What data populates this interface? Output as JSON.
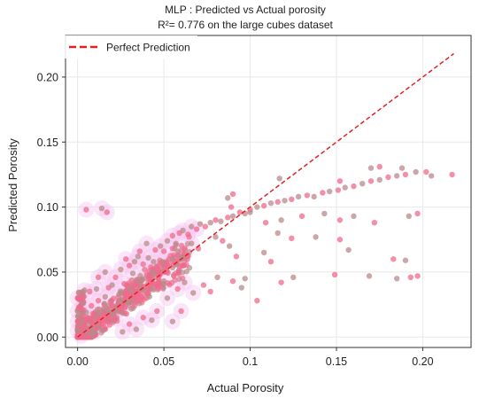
{
  "chart_data": {
    "type": "scatter",
    "title": "MLP : Predicted vs Actual porosity",
    "subtitle": "R²= 0.776 on the large cubes dataset",
    "xlabel": "Actual Porosity",
    "ylabel": "Predicted Porosity",
    "xlim": [
      -0.007,
      0.228
    ],
    "ylim": [
      -0.008,
      0.232
    ],
    "x_ticks": [
      0.0,
      0.05,
      0.1,
      0.15,
      0.2
    ],
    "x_tick_labels": [
      "0.00",
      "0.05",
      "0.1",
      "0.15",
      "0.20"
    ],
    "y_ticks": [
      0.0,
      0.05,
      0.1,
      0.15,
      0.2
    ],
    "y_tick_labels": [
      "0.00",
      "0.05",
      "0.10",
      "0.15",
      "0.20"
    ],
    "grid": true,
    "legend": {
      "position": "top-left",
      "entries": [
        "Perfect Prediction"
      ]
    },
    "colors": {
      "points_pink": "#f06a8c",
      "points_taupe": "#b98a8a",
      "halo": "#f7c6f0",
      "reference_line": "#e32020",
      "grid": "#e8e8e8"
    },
    "series": [
      {
        "name": "Perfect Prediction",
        "kind": "reference-line",
        "x": [
          0.0,
          0.218
        ],
        "y": [
          0.0,
          0.218
        ]
      },
      {
        "kind": "points",
        "points": [
          [
            0.005,
            0.098
          ],
          [
            0.014,
            0.099
          ],
          [
            0.017,
            0.096
          ],
          [
            0.004,
            0.036
          ],
          [
            0.007,
            0.035
          ],
          [
            0.011,
            0.037
          ],
          [
            0.018,
            0.038
          ],
          [
            0.02,
            0.04
          ],
          [
            0.012,
            0.046
          ],
          [
            0.016,
            0.05
          ],
          [
            0.022,
            0.046
          ],
          [
            0.025,
            0.052
          ],
          [
            0.03,
            0.055
          ],
          [
            0.033,
            0.058
          ],
          [
            0.028,
            0.06
          ],
          [
            0.035,
            0.062
          ],
          [
            0.038,
            0.056
          ],
          [
            0.041,
            0.061
          ],
          [
            0.045,
            0.067
          ],
          [
            0.048,
            0.07
          ],
          [
            0.05,
            0.066
          ],
          [
            0.052,
            0.074
          ],
          [
            0.055,
            0.078
          ],
          [
            0.057,
            0.072
          ],
          [
            0.059,
            0.08
          ],
          [
            0.061,
            0.082
          ],
          [
            0.064,
            0.079
          ],
          [
            0.066,
            0.085
          ],
          [
            0.069,
            0.083
          ],
          [
            0.071,
            0.087
          ],
          [
            0.074,
            0.085
          ],
          [
            0.077,
            0.088
          ],
          [
            0.08,
            0.09
          ],
          [
            0.083,
            0.089
          ],
          [
            0.087,
            0.092
          ],
          [
            0.09,
            0.093
          ],
          [
            0.094,
            0.096
          ],
          [
            0.097,
            0.095
          ],
          [
            0.1,
            0.098
          ],
          [
            0.104,
            0.1
          ],
          [
            0.108,
            0.101
          ],
          [
            0.112,
            0.103
          ],
          [
            0.116,
            0.104
          ],
          [
            0.12,
            0.105
          ],
          [
            0.124,
            0.106
          ],
          [
            0.128,
            0.108
          ],
          [
            0.133,
            0.109
          ],
          [
            0.137,
            0.108
          ],
          [
            0.142,
            0.111
          ],
          [
            0.146,
            0.112
          ],
          [
            0.151,
            0.113
          ],
          [
            0.155,
            0.115
          ],
          [
            0.16,
            0.116
          ],
          [
            0.165,
            0.118
          ],
          [
            0.17,
            0.12
          ],
          [
            0.175,
            0.121
          ],
          [
            0.18,
            0.123
          ],
          [
            0.185,
            0.124
          ],
          [
            0.19,
            0.125
          ],
          [
            0.196,
            0.127
          ],
          [
            0.202,
            0.127
          ],
          [
            0.205,
            0.124
          ],
          [
            0.217,
            0.125
          ],
          [
            0.188,
            0.13
          ],
          [
            0.175,
            0.131
          ],
          [
            0.17,
            0.13
          ],
          [
            0.152,
            0.12
          ],
          [
            0.117,
            0.122
          ],
          [
            0.09,
            0.11
          ],
          [
            0.087,
            0.107
          ],
          [
            0.089,
            0.1
          ],
          [
            0.1,
            0.096
          ],
          [
            0.109,
            0.088
          ],
          [
            0.118,
            0.09
          ],
          [
            0.13,
            0.093
          ],
          [
            0.143,
            0.095
          ],
          [
            0.152,
            0.09
          ],
          [
            0.16,
            0.093
          ],
          [
            0.172,
            0.088
          ],
          [
            0.192,
            0.093
          ],
          [
            0.197,
            0.095
          ],
          [
            0.116,
            0.08
          ],
          [
            0.124,
            0.076
          ],
          [
            0.138,
            0.077
          ],
          [
            0.152,
            0.075
          ],
          [
            0.157,
            0.067
          ],
          [
            0.183,
            0.06
          ],
          [
            0.19,
            0.059
          ],
          [
            0.193,
            0.046
          ],
          [
            0.185,
            0.045
          ],
          [
            0.197,
            0.047
          ],
          [
            0.169,
            0.047
          ],
          [
            0.149,
            0.048
          ],
          [
            0.125,
            0.046
          ],
          [
            0.118,
            0.042
          ],
          [
            0.097,
            0.045
          ],
          [
            0.09,
            0.043
          ],
          [
            0.081,
            0.046
          ],
          [
            0.073,
            0.04
          ],
          [
            0.062,
            0.042
          ],
          [
            0.058,
            0.037
          ],
          [
            0.067,
            0.034
          ],
          [
            0.077,
            0.035
          ],
          [
            0.095,
            0.038
          ],
          [
            0.104,
            0.028
          ],
          [
            0.055,
            0.012
          ],
          [
            0.06,
            0.02
          ],
          [
            0.052,
            0.03
          ],
          [
            0.046,
            0.02
          ],
          [
            0.043,
            0.013
          ],
          [
            0.038,
            0.015
          ],
          [
            0.034,
            0.006
          ],
          [
            0.03,
            0.01
          ],
          [
            0.026,
            0.004
          ],
          [
            0.022,
            0.014
          ],
          [
            0.018,
            0.02
          ],
          [
            0.014,
            0.01
          ],
          [
            0.01,
            0.004
          ],
          [
            0.006,
            0.015
          ],
          [
            0.003,
            0.026
          ],
          [
            0.0,
            0.03
          ],
          [
            0.0,
            0.02
          ],
          [
            0.0,
            0.012
          ],
          [
            0.0,
            0.005
          ],
          [
            0.002,
            0.001
          ],
          [
            0.04,
            0.072
          ],
          [
            0.036,
            0.066
          ],
          [
            0.032,
            0.049
          ],
          [
            0.027,
            0.041
          ],
          [
            0.024,
            0.033
          ],
          [
            0.047,
            0.052
          ],
          [
            0.044,
            0.058
          ],
          [
            0.062,
            0.064
          ],
          [
            0.066,
            0.072
          ],
          [
            0.07,
            0.068
          ],
          [
            0.08,
            0.077
          ],
          [
            0.084,
            0.074
          ],
          [
            0.088,
            0.07
          ],
          [
            0.092,
            0.062
          ],
          [
            0.108,
            0.065
          ],
          [
            0.112,
            0.058
          ],
          [
            0.058,
            0.066
          ],
          [
            0.053,
            0.06
          ],
          [
            0.05,
            0.043
          ],
          [
            0.012,
            0.028
          ],
          [
            0.016,
            0.031
          ],
          [
            0.008,
            0.024
          ],
          [
            0.005,
            0.019
          ],
          [
            0.02,
            0.024
          ],
          [
            0.024,
            0.027
          ],
          [
            0.028,
            0.032
          ],
          [
            0.031,
            0.036
          ],
          [
            0.034,
            0.04
          ],
          [
            0.037,
            0.044
          ],
          [
            0.04,
            0.048
          ],
          [
            0.043,
            0.05
          ],
          [
            0.046,
            0.054
          ],
          [
            0.049,
            0.058
          ],
          [
            0.052,
            0.055
          ],
          [
            0.055,
            0.06
          ],
          [
            0.015,
            0.015
          ],
          [
            0.02,
            0.018
          ],
          [
            0.025,
            0.022
          ],
          [
            0.03,
            0.027
          ],
          [
            0.035,
            0.033
          ]
        ]
      }
    ]
  }
}
